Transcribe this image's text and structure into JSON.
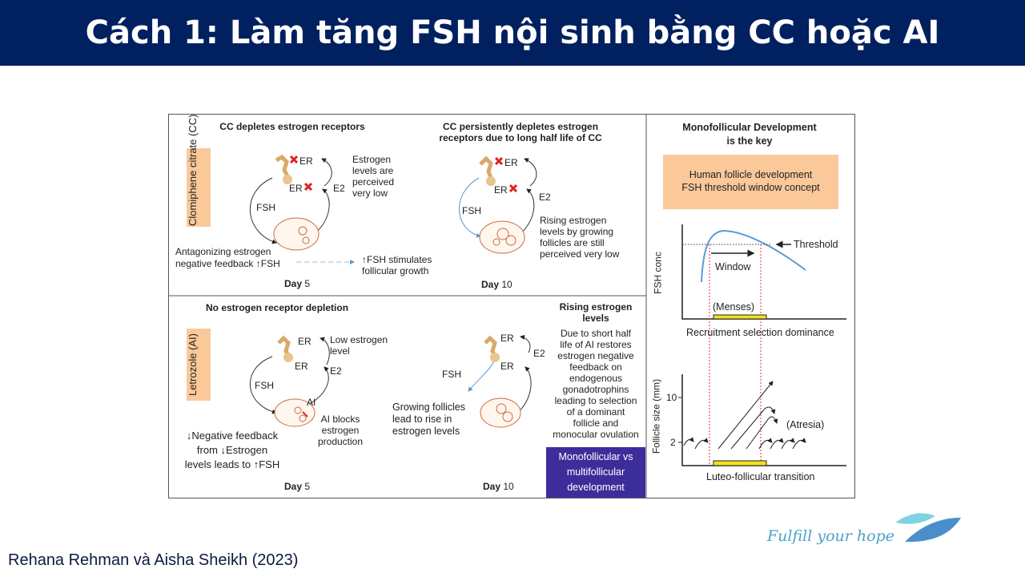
{
  "header": {
    "title": "Cách 1: Làm tăng FSH nội sinh bằng CC hoặc AI"
  },
  "cc_panel": {
    "drug_label": "Clomiphene citrate (CC)",
    "day5": {
      "heading": "CC depletes estrogen receptors",
      "er_top": "ER",
      "er_bottom": "ER",
      "fsh": "FSH",
      "e2": "E2",
      "note": "Estrogen\nlevels are\nperceived\nvery low",
      "feedback": "Antagonizing estrogen\nnegative feedback ↑FSH",
      "effect": "↑FSH stimulates\nfollicular growth",
      "day_word": "Day",
      "day_num": "5"
    },
    "day10": {
      "heading": "CC persistently depletes estrogen\nreceptors due to long half life of CC",
      "er_top": "ER",
      "er_bottom": "ER",
      "fsh": "FSH",
      "e2": "E2",
      "note": "Rising estrogen\nlevels by growing\nfollicles are still\nperceived very low",
      "day_word": "Day",
      "day_num": "10"
    }
  },
  "ai_panel": {
    "drug_label": "Letrozole (AI)",
    "day5": {
      "heading": "No estrogen receptor depletion",
      "er_top": "ER",
      "er_bottom": "ER",
      "fsh": "FSH",
      "e2": "E2",
      "ai": "AI",
      "note": "Low estrogen\nlevel",
      "block": "AI blocks\nestrogen\nproduction",
      "feedback": "↓Negative feedback\nfrom ↓Estrogen\nlevels leads to ↑FSH",
      "day_word": "Day",
      "day_num": "5"
    },
    "day10": {
      "heading": "Rising estrogen\nlevels",
      "er_top": "ER",
      "er_bottom": "ER",
      "fsh": "FSH",
      "e2": "E2",
      "growing": "Growing follicles\nlead to rise in\nestrogen levels",
      "explanation": "Due to short half\nlife of AI restores\nestrogen negative\nfeedback on\nendogenous\ngonadotrophins\nleading to selection\nof a dominant\nfollicle and\nmonocular ovulation",
      "day_word": "Day",
      "day_num": "10"
    },
    "highlight": "Monofollicular vs\nmultifollicular\ndevelopment"
  },
  "right_panel": {
    "heading": "Monofollicular Development\nis the key",
    "concept": "Human follicle development\nFSH threshold window concept",
    "fsh_chart": {
      "ylabel": "FSH conc",
      "threshold": "Threshold",
      "window": "Window",
      "menses": "(Menses)",
      "xlabel": "Recruitment selection dominance"
    },
    "follicle_chart": {
      "ylabel": "Follicle size (mm)",
      "ticks": [
        "10",
        "2"
      ],
      "atresia": "(Atresia)",
      "xlabel": "Luteo-follicular transition"
    }
  },
  "colors": {
    "header": "#002060",
    "label_box": "#fbc89a",
    "highlight": "#3d2d9b",
    "fsh_curve": "#5b9bd5",
    "menses_bar": "#f3e21b",
    "red_x": "#e02020"
  },
  "footer": {
    "citation": "Rehana Rehman và Aisha Sheikh (2023)",
    "tagline": "Fulfill your hope"
  }
}
